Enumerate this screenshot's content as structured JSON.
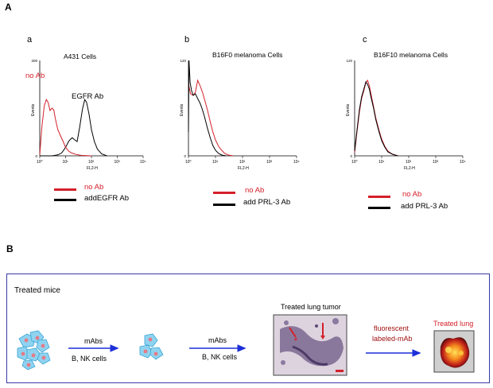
{
  "panels": {
    "A": "A",
    "B": "B"
  },
  "colors": {
    "red": "#d4202a",
    "black": "#000000",
    "arrow": "#1c2fd8",
    "frame": "#3a3aa6"
  },
  "chart_data": [
    {
      "type": "line",
      "panel": "a",
      "title": "A431 Cells",
      "xlabel": "FL2-H",
      "ylabel": "Events",
      "xscale": "log",
      "xlim": [
        1,
        10000
      ],
      "ylim": [
        0,
        200
      ],
      "xticks": [
        "10⁰",
        "10¹",
        "10²",
        "10³",
        "10⁴"
      ],
      "yticks": [
        "0",
        "200"
      ],
      "annotations": [
        "no Ab",
        "EGFR Ab"
      ],
      "series": [
        {
          "name": "no Ab",
          "color": "#d4202a",
          "x": [
            1,
            1.2,
            1.5,
            1.8,
            2.1,
            2.5,
            3,
            3.5,
            4,
            5,
            6,
            8,
            10,
            13,
            17,
            25,
            40,
            100
          ],
          "y": [
            2,
            60,
            105,
            118,
            112,
            95,
            100,
            96,
            78,
            55,
            45,
            30,
            18,
            10,
            6,
            3,
            1,
            0
          ]
        },
        {
          "name": "add EGFR Ab",
          "color": "#000000",
          "x": [
            1,
            3,
            5,
            7,
            9,
            11,
            13,
            15,
            18,
            22,
            28,
            35,
            45,
            55,
            65,
            80,
            100,
            130,
            170,
            250,
            400
          ],
          "y": [
            0,
            0,
            2,
            6,
            14,
            22,
            30,
            34,
            38,
            34,
            30,
            60,
            98,
            118,
            112,
            88,
            55,
            30,
            14,
            4,
            0
          ]
        }
      ]
    },
    {
      "type": "line",
      "panel": "b",
      "title": "B16F0 melanoma Cells",
      "xlabel": "FL2-H",
      "ylabel": "Events",
      "xscale": "log",
      "xlim": [
        1,
        10000
      ],
      "ylim": [
        0,
        120
      ],
      "xticks": [
        "10⁰",
        "10¹",
        "10²",
        "10³",
        "10⁴"
      ],
      "yticks": [
        "0",
        "120"
      ],
      "series": [
        {
          "name": "no Ab",
          "color": "#d4202a",
          "x": [
            1,
            1.2,
            1.5,
            1.8,
            2.2,
            2.7,
            3.3,
            4,
            5,
            6.5,
            8,
            10,
            13,
            17,
            22,
            30,
            45
          ],
          "y": [
            90,
            78,
            76,
            80,
            95,
            88,
            80,
            70,
            58,
            42,
            30,
            20,
            12,
            7,
            3,
            1,
            0
          ]
        },
        {
          "name": "add PRL-3 Ab",
          "color": "#000000",
          "x": [
            1,
            1.05,
            1.15,
            1.3,
            1.5,
            1.8,
            2.2,
            2.7,
            3.3,
            4,
            5,
            6.5,
            8,
            10,
            13,
            17,
            25
          ],
          "y": [
            30,
            120,
            92,
            82,
            76,
            78,
            72,
            66,
            58,
            48,
            35,
            22,
            13,
            7,
            3,
            1,
            0
          ]
        }
      ]
    },
    {
      "type": "line",
      "panel": "c",
      "title": "B16F10 melanoma Cells",
      "xlabel": "FL2-H",
      "ylabel": "Events",
      "xscale": "log",
      "xlim": [
        1,
        10000
      ],
      "ylim": [
        0,
        120
      ],
      "xticks": [
        "10⁰",
        "10¹",
        "10²",
        "10³",
        "10⁴"
      ],
      "yticks": [
        "0",
        "120"
      ],
      "series": [
        {
          "name": "no Ab",
          "color": "#d4202a",
          "x": [
            1,
            1.2,
            1.5,
            1.8,
            2.2,
            2.6,
            3,
            3.5,
            4,
            5,
            6,
            8,
            10,
            13,
            17,
            25,
            40
          ],
          "y": [
            4,
            28,
            55,
            72,
            82,
            92,
            95,
            88,
            78,
            62,
            48,
            32,
            21,
            12,
            6,
            2,
            0
          ]
        },
        {
          "name": "add PRL-3 Ab",
          "color": "#000000",
          "x": [
            1,
            1.2,
            1.5,
            1.8,
            2.2,
            2.6,
            3,
            3.5,
            4,
            5,
            6,
            8,
            10,
            13,
            17,
            25,
            40
          ],
          "y": [
            6,
            30,
            58,
            74,
            84,
            93,
            90,
            84,
            74,
            60,
            46,
            30,
            19,
            11,
            5,
            2,
            0
          ]
        }
      ]
    }
  ],
  "legends": [
    {
      "red": "no Ab",
      "black": "addEGFR Ab"
    },
    {
      "red": "no Ab",
      "black": "add PRL-3  Ab"
    },
    {
      "red": "no Ab",
      "black": "add PRL-3  Ab"
    }
  ],
  "schematic": {
    "heading": "Treated mice",
    "arrow1_top": "mAbs",
    "arrow1_bottom": "B, NK cells",
    "arrow2_top": "mAbs",
    "arrow2_bottom": "B, NK cells",
    "tumor_title": "Treated lung tumor",
    "arrow3_top": "fluorescent",
    "arrow3_bottom": "labeled-mAb",
    "lung_title": "Treated lung"
  }
}
